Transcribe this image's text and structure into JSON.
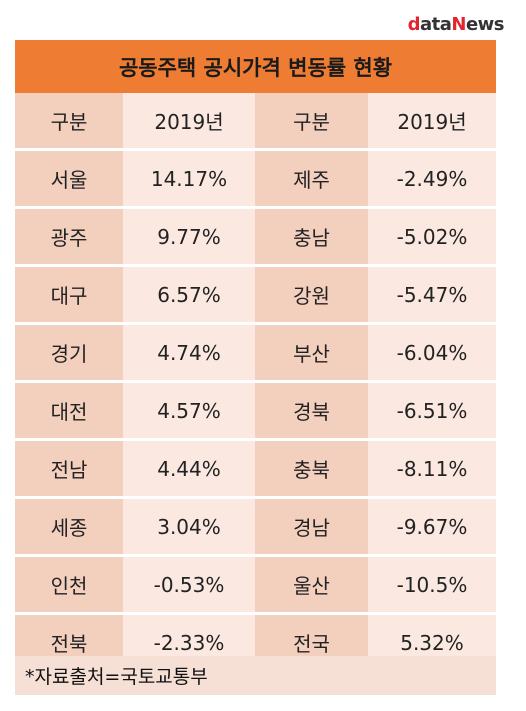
{
  "logo": {
    "part1": "d",
    "part2": "ata",
    "part3": "N",
    "part4": "ews"
  },
  "title": "공동주택 공시가격 변동률 현황",
  "header_row": [
    "구분",
    "2019년",
    "구분",
    "2019년"
  ],
  "rows": [
    [
      "서울",
      "14.17%",
      "제주",
      "-2.49%"
    ],
    [
      "광주",
      "9.77%",
      "충남",
      "-5.02%"
    ],
    [
      "대구",
      "6.57%",
      "강원",
      "-5.47%"
    ],
    [
      "경기",
      "4.74%",
      "부산",
      "-6.04%"
    ],
    [
      "대전",
      "4.57%",
      "경북",
      "-6.51%"
    ],
    [
      "전남",
      "4.44%",
      "충북",
      "-8.11%"
    ],
    [
      "세종",
      "3.04%",
      "경남",
      "-9.67%"
    ],
    [
      "인천",
      "-0.53%",
      "울산",
      "-10.5%"
    ],
    [
      "전북",
      "-2.33%",
      "전국",
      "5.32%"
    ]
  ],
  "footer": "*자료출처=국토교통부",
  "colors": {
    "header_bg": "#ee7d33",
    "cell_dark": "#f3cfbe",
    "cell_light": "#fbe9e1"
  }
}
